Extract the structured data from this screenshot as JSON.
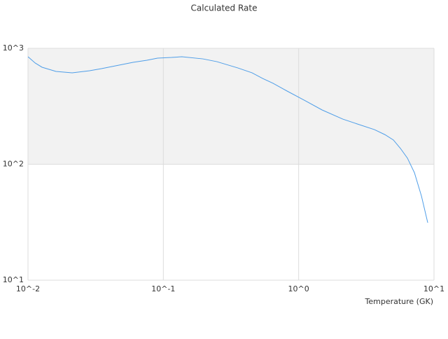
{
  "chart_data": {
    "type": "line",
    "title": "Calculated Rate",
    "x_label": "Temperature (GK)",
    "x": [
      0.01,
      0.0113,
      0.0127,
      0.0161,
      0.0212,
      0.0285,
      0.0349,
      0.0443,
      0.0597,
      0.0757,
      0.0906,
      0.115,
      0.137,
      0.196,
      0.249,
      0.356,
      0.452,
      0.541,
      0.647,
      0.821,
      1.1,
      1.49,
      2.12,
      2.7,
      3.63,
      4.34,
      5.01,
      5.65,
      6.36,
      7.17,
      8.08,
      8.99
    ],
    "series": [
      {
        "color": "#4f9ee8",
        "values": [
          846,
          747,
          687,
          632,
          615,
          641,
          668,
          706,
          757,
          789,
          823,
          834,
          846,
          811,
          767,
          677,
          615,
          550,
          499,
          428,
          357,
          294,
          245,
          223,
          199,
          180,
          162,
          137,
          113,
          84.5,
          53.1,
          31.3
        ]
      }
    ],
    "xlim": [
      0.01,
      10
    ],
    "ylim": [
      10,
      1000
    ],
    "x_log": true,
    "y_log": true,
    "xticks": [
      {
        "value": 0.01,
        "label": "10^-2"
      },
      {
        "value": 0.1,
        "label": "10^-1"
      },
      {
        "value": 1,
        "label": "10^0"
      },
      {
        "value": 10,
        "label": "10^1"
      }
    ],
    "yticks": [
      {
        "value": 10,
        "label": "10^1"
      },
      {
        "value": 100,
        "label": "10^2"
      },
      {
        "value": 1000,
        "label": "10^3"
      }
    ],
    "grid": true,
    "band_color": "#f2f2f2"
  }
}
